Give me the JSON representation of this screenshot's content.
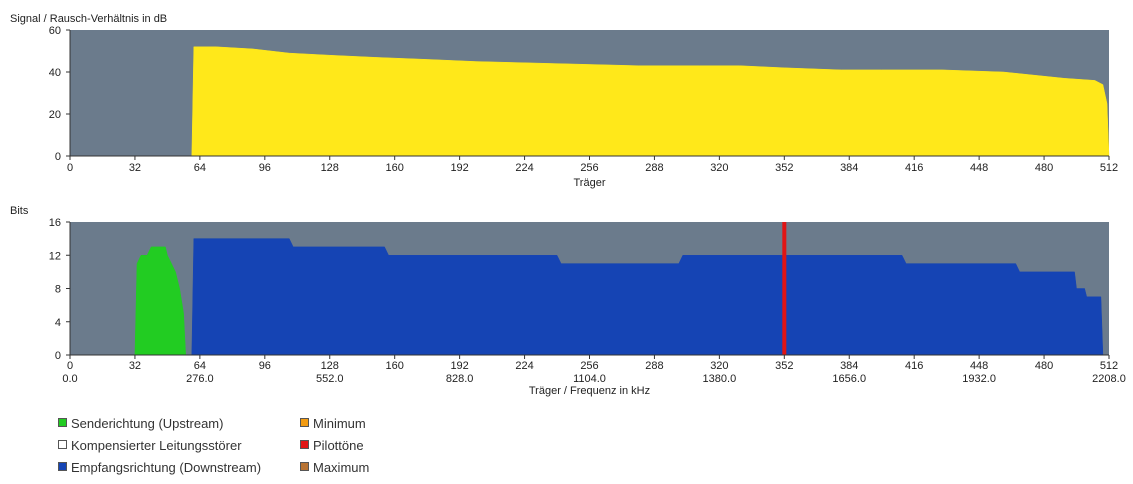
{
  "chart_data": [
    {
      "type": "area",
      "ylabel": "Signal / Rausch-Verhältnis in dB",
      "xlabel": "Träger",
      "xlim": [
        0,
        512
      ],
      "ylim": [
        0,
        60
      ],
      "x_ticks": [
        0,
        32,
        64,
        96,
        128,
        160,
        192,
        224,
        256,
        288,
        320,
        352,
        384,
        416,
        448,
        480,
        512
      ],
      "y_ticks": [
        0,
        20,
        40,
        60
      ],
      "background_color": "#6b7b8c",
      "series": [
        {
          "color": "#ffe81a",
          "points": [
            [
              60,
              0
            ],
            [
              61,
              52
            ],
            [
              72,
              52
            ],
            [
              90,
              51
            ],
            [
              108,
              49
            ],
            [
              128,
              48
            ],
            [
              150,
              47
            ],
            [
              176,
              46
            ],
            [
              200,
              45
            ],
            [
              240,
              44
            ],
            [
              280,
              43
            ],
            [
              310,
              43
            ],
            [
              330,
              43
            ],
            [
              352,
              42
            ],
            [
              380,
              41
            ],
            [
              400,
              41
            ],
            [
              430,
              41
            ],
            [
              460,
              40
            ],
            [
              490,
              37
            ],
            [
              505,
              36
            ],
            [
              509,
              34
            ],
            [
              511,
              25
            ],
            [
              512,
              0
            ]
          ]
        }
      ]
    },
    {
      "type": "area",
      "ylabel": "Bits",
      "xlabel": "Träger / Frequenz in kHz",
      "xlim": [
        0,
        512
      ],
      "ylim": [
        0,
        16
      ],
      "x_ticks": [
        0,
        32,
        64,
        96,
        128,
        160,
        192,
        224,
        256,
        288,
        320,
        352,
        384,
        416,
        448,
        480,
        512
      ],
      "x_ticks_khz": [
        "0.0",
        "276.0",
        "552.0",
        "828.0",
        "1104.0",
        "1380.0",
        "1656.0",
        "1932.0",
        "2208.0"
      ],
      "y_ticks": [
        0,
        4,
        8,
        12,
        16
      ],
      "background_color": "#6b7b8c",
      "series": [
        {
          "color": "#22cc22",
          "points": [
            [
              32,
              0
            ],
            [
              33,
              11
            ],
            [
              35,
              12
            ],
            [
              38,
              12
            ],
            [
              40,
              13
            ],
            [
              47,
              13
            ],
            [
              48,
              12
            ],
            [
              50,
              11
            ],
            [
              52,
              10
            ],
            [
              54,
              8
            ],
            [
              56,
              5
            ],
            [
              57,
              0
            ]
          ]
        },
        {
          "color": "#1544b4",
          "points": [
            [
              60,
              0
            ],
            [
              61,
              14
            ],
            [
              108,
              14
            ],
            [
              110,
              13
            ],
            [
              155,
              13
            ],
            [
              157,
              12
            ],
            [
              240,
              12
            ],
            [
              242,
              11
            ],
            [
              300,
              11
            ],
            [
              302,
              12
            ],
            [
              410,
              12
            ],
            [
              412,
              11
            ],
            [
              466,
              11
            ],
            [
              468,
              10
            ],
            [
              495,
              10
            ],
            [
              496,
              8
            ],
            [
              500,
              8
            ],
            [
              501,
              7
            ],
            [
              508,
              7
            ],
            [
              509,
              0
            ]
          ]
        }
      ],
      "pilot_tone": {
        "x": 352,
        "color": "#e01414"
      }
    }
  ],
  "legend": [
    {
      "label": "Senderichtung (Upstream)",
      "color": "#22cc22"
    },
    {
      "label": "Kompensierter Leitungsstörer",
      "color": "#ffffff"
    },
    {
      "label": "Empfangsrichtung (Downstream)",
      "color": "#1544b4"
    },
    {
      "label": "Minimum",
      "color": "#f39c12"
    },
    {
      "label": "Pilottöne",
      "color": "#e01414"
    },
    {
      "label": "Maximum",
      "color": "#b87333"
    }
  ]
}
